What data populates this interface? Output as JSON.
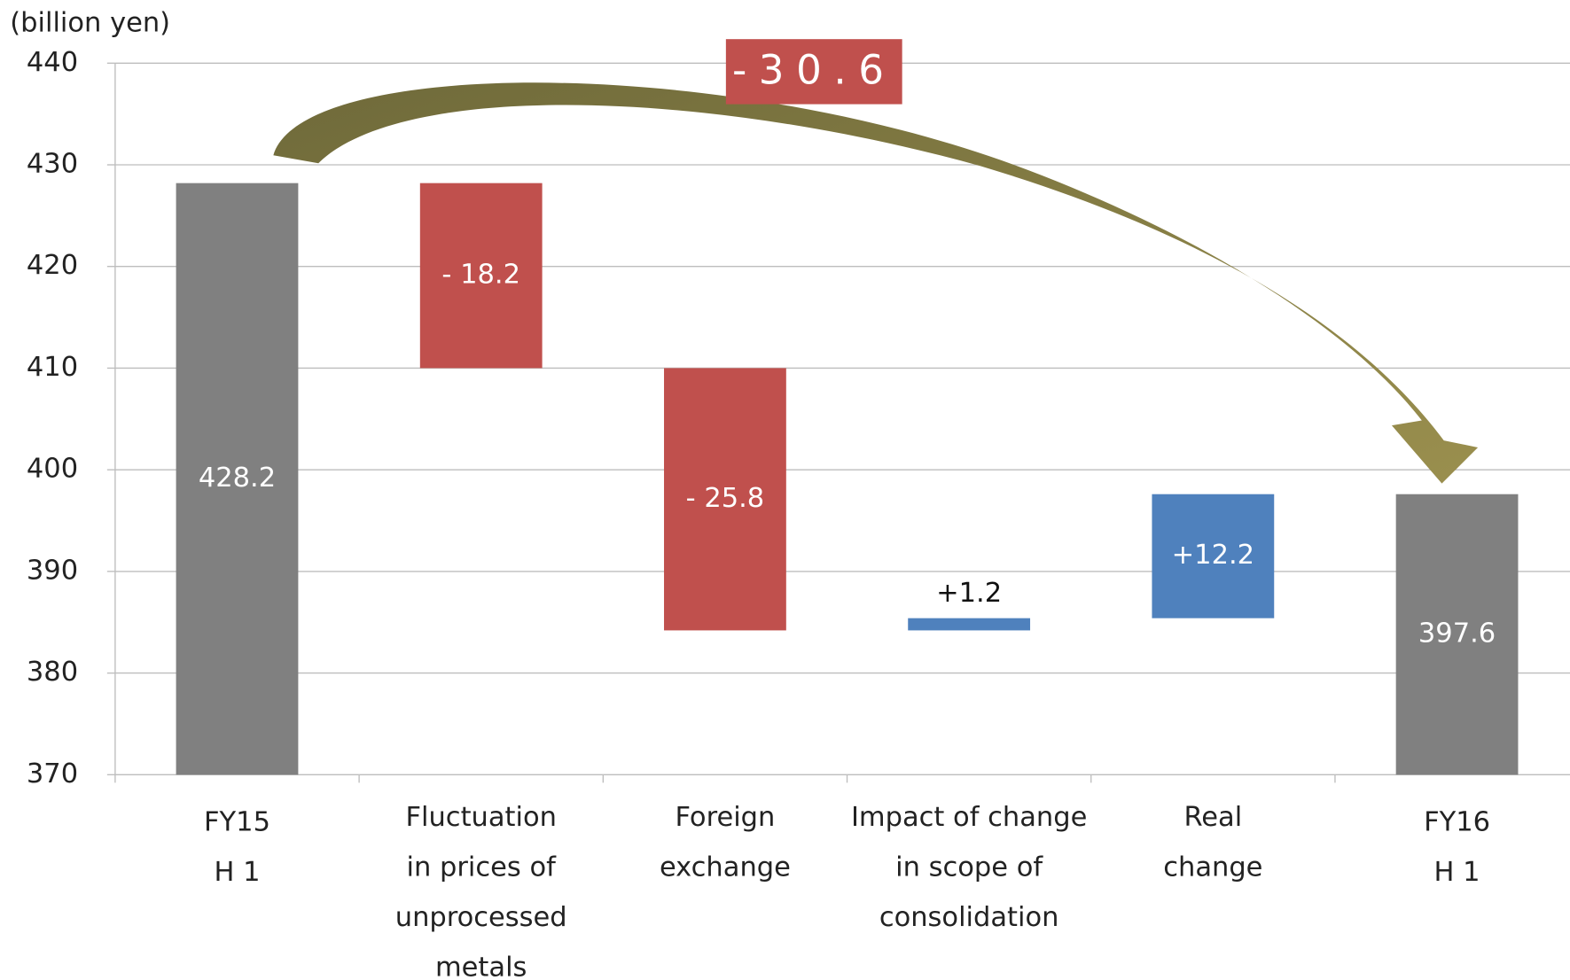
{
  "chart_data": {
    "type": "waterfall",
    "y_label": "(billion yen)",
    "categories": [
      [
        "FY15",
        "H 1"
      ],
      [
        "Fluctuation",
        "in prices of",
        "unprocessed",
        "metals"
      ],
      [
        "Foreign",
        "exchange"
      ],
      [
        "Impact of change",
        "in scope of",
        "consolidation"
      ],
      [
        "Real",
        "change"
      ],
      [
        "FY16",
        "H 1"
      ]
    ],
    "values": [
      428.2,
      -18.2,
      -25.8,
      1.2,
      12.2,
      397.6
    ],
    "value_labels": [
      "428.2",
      "- 18.2",
      "- 25.8",
      "+1.2",
      "+12.2",
      "397.6"
    ],
    "measure": [
      "absolute",
      "relative",
      "relative",
      "relative",
      "relative",
      "total"
    ],
    "colors": [
      "#808080",
      "#c0504d",
      "#c0504d",
      "#4f81bd",
      "#4f81bd",
      "#808080"
    ],
    "ylim": [
      370,
      440
    ],
    "yticks": [
      370,
      380,
      390,
      400,
      410,
      420,
      430,
      440
    ],
    "grid": true,
    "annotation": "-30.6"
  }
}
